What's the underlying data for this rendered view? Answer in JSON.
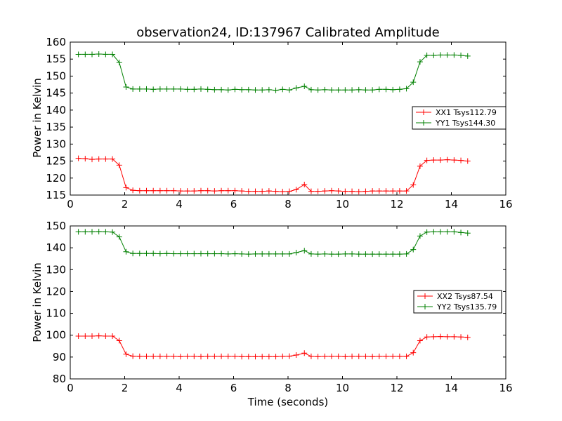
{
  "chart_data": [
    {
      "type": "line",
      "title": "observation24, ID:137967 Calibrated Amplitude",
      "xlabel": "",
      "ylabel": "Power in Kelvin",
      "xlim": [
        0,
        16
      ],
      "ylim": [
        115,
        160
      ],
      "xticks": [
        0,
        2,
        4,
        6,
        8,
        10,
        12,
        14,
        16
      ],
      "yticks": [
        115,
        120,
        125,
        130,
        135,
        140,
        145,
        150,
        155,
        160
      ],
      "grid": false,
      "legend_position": "right",
      "x": [
        0.3,
        0.55,
        0.8,
        1.05,
        1.3,
        1.55,
        1.8,
        2.05,
        2.3,
        2.55,
        2.8,
        3.05,
        3.3,
        3.55,
        3.8,
        4.05,
        4.3,
        4.55,
        4.8,
        5.05,
        5.3,
        5.55,
        5.8,
        6.05,
        6.3,
        6.55,
        6.8,
        7.05,
        7.3,
        7.55,
        7.8,
        8.05,
        8.3,
        8.6,
        8.85,
        9.1,
        9.35,
        9.6,
        9.85,
        10.1,
        10.35,
        10.6,
        10.85,
        11.1,
        11.35,
        11.6,
        11.85,
        12.1,
        12.35,
        12.6,
        12.85,
        13.1,
        13.35,
        13.6,
        13.85,
        14.1,
        14.35,
        14.6
      ],
      "series": [
        {
          "name": "XX1 Tsys112.79",
          "color": "#ff0000",
          "values": [
            125.8,
            125.7,
            125.5,
            125.6,
            125.6,
            125.6,
            123.8,
            117.2,
            116.4,
            116.3,
            116.3,
            116.3,
            116.3,
            116.3,
            116.3,
            116.2,
            116.2,
            116.2,
            116.3,
            116.3,
            116.2,
            116.3,
            116.3,
            116.3,
            116.2,
            116.1,
            116.1,
            116.1,
            116.2,
            116.1,
            116.0,
            116.1,
            116.6,
            118.1,
            116.1,
            116.1,
            116.2,
            116.3,
            116.2,
            116.1,
            116.1,
            116.0,
            116.1,
            116.2,
            116.2,
            116.2,
            116.2,
            116.2,
            116.2,
            118.0,
            123.5,
            125.2,
            125.3,
            125.3,
            125.4,
            125.3,
            125.2,
            125.0
          ]
        },
        {
          "name": "YY1 Tsys144.30",
          "color": "#008000",
          "values": [
            156.4,
            156.4,
            156.4,
            156.5,
            156.4,
            156.4,
            154.0,
            146.8,
            146.2,
            146.2,
            146.2,
            146.1,
            146.2,
            146.2,
            146.2,
            146.2,
            146.1,
            146.1,
            146.2,
            146.1,
            146.0,
            146.0,
            145.9,
            146.1,
            146.0,
            146.0,
            145.9,
            145.9,
            146.0,
            145.8,
            146.1,
            145.9,
            146.5,
            147.0,
            146.0,
            145.9,
            146.0,
            145.9,
            145.9,
            145.9,
            145.9,
            146.0,
            145.9,
            145.9,
            146.1,
            146.1,
            146.0,
            146.1,
            146.3,
            148.2,
            154.2,
            156.1,
            156.1,
            156.2,
            156.2,
            156.2,
            156.1,
            155.9
          ]
        }
      ]
    },
    {
      "type": "line",
      "title": "",
      "xlabel": "Time (seconds)",
      "ylabel": "Power in Kelvin",
      "xlim": [
        0,
        16
      ],
      "ylim": [
        80,
        150
      ],
      "xticks": [
        0,
        2,
        4,
        6,
        8,
        10,
        12,
        14,
        16
      ],
      "yticks": [
        80,
        90,
        100,
        110,
        120,
        130,
        140,
        150
      ],
      "grid": false,
      "legend_position": "right",
      "x": [
        0.3,
        0.55,
        0.8,
        1.05,
        1.3,
        1.55,
        1.8,
        2.05,
        2.3,
        2.55,
        2.8,
        3.05,
        3.3,
        3.55,
        3.8,
        4.05,
        4.3,
        4.55,
        4.8,
        5.05,
        5.3,
        5.55,
        5.8,
        6.05,
        6.3,
        6.55,
        6.8,
        7.05,
        7.3,
        7.55,
        7.8,
        8.05,
        8.3,
        8.6,
        8.85,
        9.1,
        9.35,
        9.6,
        9.85,
        10.1,
        10.35,
        10.6,
        10.85,
        11.1,
        11.35,
        11.6,
        11.85,
        12.1,
        12.35,
        12.6,
        12.85,
        13.1,
        13.35,
        13.6,
        13.85,
        14.1,
        14.35,
        14.6
      ],
      "series": [
        {
          "name": "XX2 Tsys87.54",
          "color": "#ff0000",
          "values": [
            99.6,
            99.6,
            99.6,
            99.7,
            99.6,
            99.6,
            97.5,
            91.3,
            90.4,
            90.3,
            90.3,
            90.3,
            90.3,
            90.3,
            90.3,
            90.2,
            90.3,
            90.3,
            90.2,
            90.3,
            90.3,
            90.3,
            90.3,
            90.3,
            90.2,
            90.2,
            90.2,
            90.2,
            90.2,
            90.2,
            90.3,
            90.4,
            90.9,
            91.8,
            90.3,
            90.2,
            90.3,
            90.3,
            90.3,
            90.2,
            90.3,
            90.3,
            90.3,
            90.2,
            90.3,
            90.3,
            90.3,
            90.3,
            90.3,
            92.0,
            97.5,
            99.2,
            99.3,
            99.4,
            99.3,
            99.3,
            99.2,
            99.0
          ]
        },
        {
          "name": "YY2 Tsys135.79",
          "color": "#008000",
          "values": [
            147.3,
            147.3,
            147.3,
            147.4,
            147.3,
            147.2,
            145.0,
            138.2,
            137.4,
            137.4,
            137.4,
            137.4,
            137.3,
            137.4,
            137.3,
            137.3,
            137.3,
            137.3,
            137.3,
            137.3,
            137.3,
            137.3,
            137.2,
            137.3,
            137.2,
            137.1,
            137.2,
            137.2,
            137.2,
            137.2,
            137.2,
            137.2,
            137.8,
            138.7,
            137.2,
            137.1,
            137.2,
            137.1,
            137.1,
            137.2,
            137.2,
            137.1,
            137.1,
            137.1,
            137.1,
            137.1,
            137.1,
            137.1,
            137.2,
            139.2,
            145.4,
            147.2,
            147.3,
            147.3,
            147.3,
            147.3,
            147.0,
            146.7
          ]
        }
      ]
    }
  ]
}
